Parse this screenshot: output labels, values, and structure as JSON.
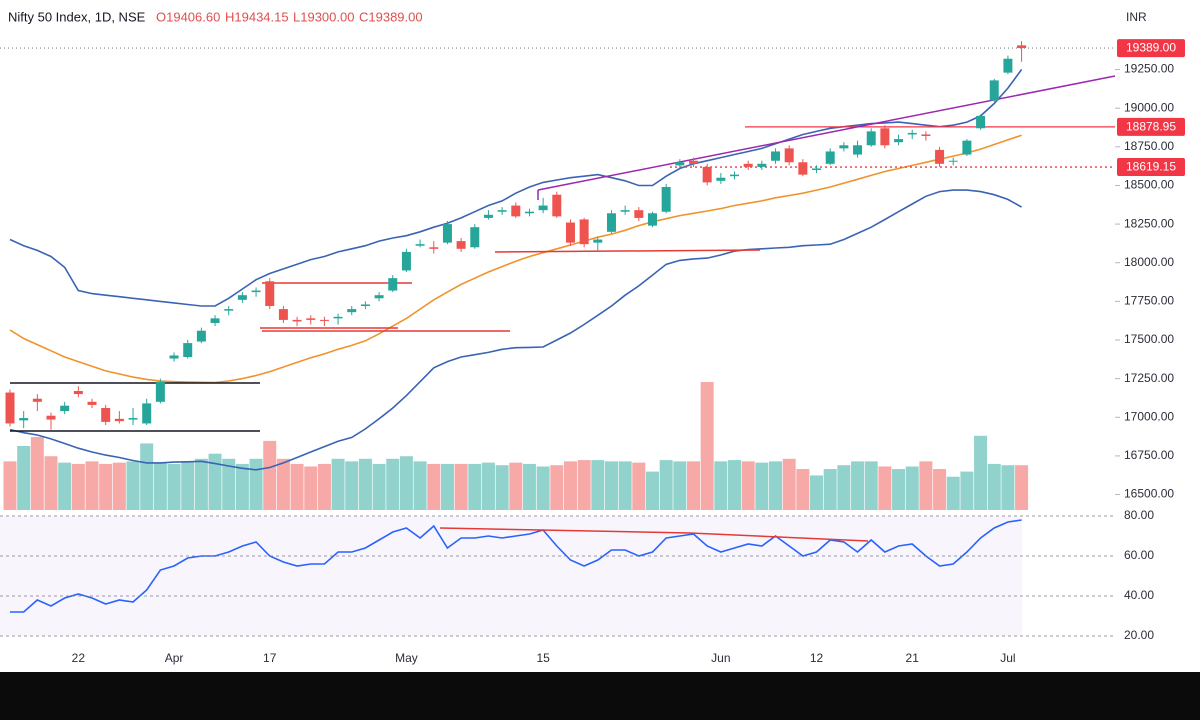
{
  "chart_data": {
    "type": "candlestick",
    "title": "Nifty 50 Index, 1D, NSE",
    "ohlc_labels": [
      "O19406.60",
      "H19434.15",
      "L19300.00",
      "C19389.00"
    ],
    "currency": "INR",
    "categories": [
      null,
      null,
      null,
      null,
      null,
      "22",
      null,
      null,
      null,
      null,
      null,
      null,
      "Apr",
      null,
      null,
      null,
      null,
      null,
      null,
      "17",
      null,
      null,
      null,
      null,
      null,
      null,
      null,
      null,
      null,
      "May",
      null,
      null,
      null,
      null,
      null,
      null,
      null,
      null,
      null,
      "15",
      null,
      null,
      null,
      null,
      null,
      null,
      null,
      null,
      null,
      null,
      null,
      null,
      "Jun",
      null,
      null,
      null,
      null,
      null,
      null,
      "12",
      null,
      null,
      null,
      null,
      null,
      null,
      "21",
      null,
      null,
      null,
      null,
      null,
      null,
      "Jul",
      null
    ],
    "open": [
      17160,
      16980,
      17120,
      17010,
      17040,
      17170,
      17100,
      17060,
      16990,
      16985,
      16960,
      17100,
      17380,
      17390,
      17490,
      17610,
      17690,
      17760,
      17810,
      17880,
      17700,
      17630,
      17640,
      17630,
      17640,
      17680,
      17720,
      17770,
      17820,
      17950,
      18110,
      18100,
      18130,
      18140,
      18100,
      18290,
      18330,
      18370,
      18320,
      18340,
      18440,
      18260,
      18280,
      18130,
      18200,
      18330,
      18340,
      18240,
      18330,
      18630,
      18660,
      18620,
      18530,
      18560,
      18640,
      18620,
      18660,
      18740,
      18650,
      18600,
      18640,
      18740,
      18700,
      18760,
      18870,
      18780,
      18830,
      18830,
      18730,
      18660,
      18700,
      18870,
      19050,
      19230,
      19406.6
    ],
    "high": [
      17180,
      17040,
      17150,
      17030,
      17100,
      17200,
      17120,
      17080,
      17040,
      17060,
      17120,
      17250,
      17420,
      17500,
      17580,
      17660,
      17720,
      17810,
      17840,
      17900,
      17720,
      17650,
      17660,
      17650,
      17670,
      17720,
      17750,
      17810,
      17920,
      18090,
      18150,
      18140,
      18270,
      18160,
      18250,
      18340,
      18360,
      18390,
      18350,
      18420,
      18460,
      18280,
      18290,
      18170,
      18340,
      18370,
      18360,
      18330,
      18510,
      18670,
      18680,
      18640,
      18580,
      18590,
      18660,
      18660,
      18740,
      18760,
      18670,
      18630,
      18740,
      18780,
      18790,
      18870,
      18890,
      18830,
      18860,
      18850,
      18750,
      18680,
      18800,
      18960,
      19190,
      19340,
      19434.15
    ],
    "low": [
      16940,
      16930,
      17040,
      16920,
      17020,
      17130,
      17060,
      16950,
      16960,
      16950,
      16950,
      17090,
      17360,
      17380,
      17480,
      17590,
      17660,
      17740,
      17780,
      17700,
      17610,
      17590,
      17600,
      17590,
      17600,
      17660,
      17700,
      17750,
      17810,
      17940,
      18100,
      18060,
      18120,
      18070,
      18090,
      18280,
      18310,
      18290,
      18300,
      18320,
      18290,
      18110,
      18100,
      18080,
      18190,
      18310,
      18270,
      18230,
      18320,
      18610,
      18620,
      18500,
      18510,
      18540,
      18600,
      18600,
      18640,
      18630,
      18560,
      18580,
      18630,
      18720,
      18680,
      18750,
      18740,
      18760,
      18800,
      18790,
      18620,
      18630,
      18690,
      18860,
      19040,
      19220,
      19300
    ],
    "close": [
      16960,
      16995,
      17100,
      16985,
      17075,
      17150,
      17080,
      16970,
      16975,
      16995,
      17090,
      17230,
      17400,
      17480,
      17560,
      17640,
      17700,
      17790,
      17820,
      17720,
      17630,
      17620,
      17630,
      17625,
      17650,
      17700,
      17730,
      17790,
      17900,
      18070,
      18120,
      18090,
      18250,
      18090,
      18230,
      18310,
      18340,
      18300,
      18330,
      18370,
      18300,
      18130,
      18120,
      18150,
      18320,
      18340,
      18290,
      18320,
      18490,
      18650,
      18640,
      18520,
      18550,
      18570,
      18620,
      18640,
      18720,
      18650,
      18570,
      18610,
      18720,
      18760,
      18760,
      18850,
      18760,
      18800,
      18840,
      18820,
      18640,
      18660,
      18790,
      18950,
      19180,
      19320,
      19389
    ],
    "up_color": "#26a69a",
    "down_color": "#ef5350",
    "ylim": [
      16400,
      19700
    ],
    "yticks": [
      {
        "value": 16500,
        "label": "16500.00"
      },
      {
        "value": 16750,
        "label": "16750.00"
      },
      {
        "value": 17000,
        "label": "17000.00"
      },
      {
        "value": 17250,
        "label": "17250.00"
      },
      {
        "value": 17500,
        "label": "17500.00"
      },
      {
        "value": 17750,
        "label": "17750.00"
      },
      {
        "value": 18000,
        "label": "18000.00"
      },
      {
        "value": 18250,
        "label": "18250.00"
      },
      {
        "value": 18500,
        "label": "18500.00"
      },
      {
        "value": 18750,
        "label": "18750.00"
      },
      {
        "value": 19000,
        "label": "19000.00"
      },
      {
        "value": 19250,
        "label": "19250.00"
      }
    ],
    "grid": false,
    "overlays": [
      {
        "color": "#3b63b3",
        "values": [
          18150,
          18110,
          18080,
          18040,
          17970,
          17820,
          17800,
          17790,
          17780,
          17770,
          17760,
          17750,
          17740,
          17730,
          17720,
          17720,
          17770,
          17830,
          17890,
          17930,
          17960,
          17990,
          18020,
          18040,
          18070,
          18090,
          18110,
          18140,
          18160,
          18175,
          18200,
          18230,
          18255,
          18290,
          18330,
          18370,
          18400,
          18450,
          18490,
          18520,
          18535,
          18550,
          18560,
          18570,
          18550,
          18530,
          18500,
          18500,
          18560,
          18610,
          18640,
          18660,
          18680,
          18700,
          18720,
          18740,
          18770,
          18800,
          18830,
          18850,
          18870,
          18880,
          18890,
          18900,
          18905,
          18910,
          18900,
          18890,
          18880,
          18890,
          18910,
          18950,
          19030,
          19130,
          19250
        ]
      },
      {
        "color": "#3b63b3",
        "values": [
          16920,
          16900,
          16885,
          16860,
          16830,
          16800,
          16775,
          16755,
          16740,
          16720,
          16705,
          16705,
          16710,
          16712,
          16715,
          16700,
          16685,
          16670,
          16660,
          16675,
          16705,
          16740,
          16775,
          16810,
          16845,
          16870,
          16925,
          16990,
          17060,
          17140,
          17230,
          17320,
          17360,
          17390,
          17405,
          17420,
          17440,
          17450,
          17452,
          17455,
          17500,
          17545,
          17600,
          17660,
          17720,
          17790,
          17850,
          17920,
          17990,
          18015,
          18025,
          18030,
          18050,
          18075,
          18085,
          18090,
          18095,
          18100,
          18110,
          18115,
          18120,
          18150,
          18190,
          18230,
          18280,
          18330,
          18380,
          18430,
          18460,
          18470,
          18470,
          18460,
          18440,
          18410,
          18360
        ]
      },
      {
        "color": "#f0932b",
        "values": [
          17565,
          17510,
          17470,
          17430,
          17390,
          17360,
          17330,
          17300,
          17280,
          17260,
          17245,
          17235,
          17230,
          17228,
          17226,
          17225,
          17235,
          17250,
          17270,
          17295,
          17325,
          17355,
          17385,
          17410,
          17440,
          17465,
          17495,
          17540,
          17590,
          17640,
          17700,
          17760,
          17810,
          17860,
          17900,
          17940,
          17975,
          18010,
          18040,
          18065,
          18090,
          18115,
          18140,
          18165,
          18185,
          18210,
          18240,
          18265,
          18285,
          18305,
          18320,
          18335,
          18350,
          18370,
          18385,
          18400,
          18420,
          18435,
          18450,
          18470,
          18490,
          18515,
          18540,
          18565,
          18590,
          18610,
          18630,
          18650,
          18670,
          18690,
          18710,
          18735,
          18765,
          18795,
          18825
        ]
      }
    ],
    "volume": {
      "values": [
        38,
        50,
        57,
        42,
        37,
        36,
        38,
        36,
        37,
        38,
        52,
        37,
        36,
        38,
        40,
        44,
        40,
        36,
        40,
        54,
        40,
        36,
        34,
        36,
        40,
        38,
        40,
        36,
        40,
        42,
        38,
        36,
        36,
        36,
        36,
        37,
        35,
        37,
        36,
        34,
        35,
        38,
        39,
        39,
        38,
        38,
        37,
        30,
        39,
        38,
        38,
        100,
        38,
        39,
        38,
        37,
        38,
        40,
        32,
        27,
        32,
        35,
        38,
        38,
        34,
        32,
        34,
        38,
        32,
        26,
        30,
        58,
        36,
        35,
        35
      ],
      "ylim": [
        0,
        100
      ],
      "up_color": "rgba(38,166,154,0.5)",
      "down_color": "rgba(239,83,80,0.5)"
    },
    "price_labels": [
      {
        "value": 19389,
        "label": "19389.00",
        "color": "#f23645",
        "line": "dotted-gray"
      },
      {
        "value": 18878.95,
        "label": "18878.95",
        "color": "#f23645",
        "line": "solid"
      },
      {
        "value": 18619.15,
        "label": "18619.15",
        "color": "#f23645",
        "line": "dotted"
      }
    ],
    "rsi": {
      "type": "line",
      "color": "#2962ff",
      "values": [
        32,
        32,
        38,
        35,
        39,
        41,
        39,
        36,
        38,
        37,
        43,
        53,
        55,
        59,
        60,
        60,
        62,
        65,
        67,
        60,
        57,
        55,
        56,
        56,
        62,
        62,
        64,
        68,
        72,
        74,
        69,
        75,
        64,
        69,
        69,
        70,
        69,
        70,
        71,
        73,
        65,
        58,
        55,
        58,
        63,
        63,
        60,
        62,
        69,
        70,
        71,
        65,
        62,
        64,
        66,
        65,
        70,
        65,
        60,
        62,
        68,
        67,
        62,
        68,
        62,
        65,
        66,
        60,
        55,
        56,
        62,
        69,
        74,
        77,
        78
      ],
      "ylim": [
        3,
        83
      ],
      "yticks": [
        {
          "value": 20,
          "label": "20.00"
        },
        {
          "value": 40,
          "label": "40.00"
        },
        {
          "value": 60,
          "label": "60.00"
        },
        {
          "value": 80,
          "label": "80.00"
        }
      ],
      "grid": true
    }
  }
}
